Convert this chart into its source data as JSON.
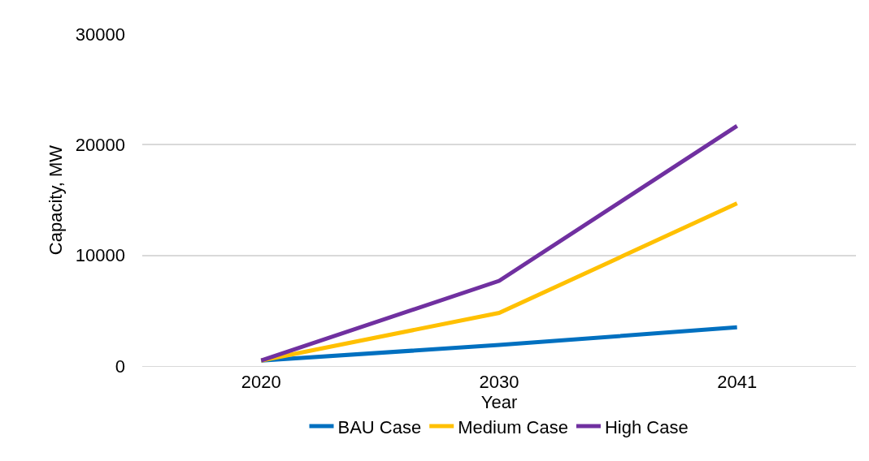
{
  "chart_data": {
    "type": "line",
    "xlabel": "Year",
    "ylabel": "Capacity, MW",
    "categories": [
      "2020",
      "2030",
      "2041"
    ],
    "series": [
      {
        "name": "BAU Case",
        "color": "#0070c0",
        "values": [
          500,
          1900,
          3500
        ]
      },
      {
        "name": "Medium Case",
        "color": "#ffc000",
        "values": [
          500,
          4800,
          14700
        ]
      },
      {
        "name": "High Case",
        "color": "#7030a0",
        "values": [
          500,
          7700,
          21700
        ]
      }
    ],
    "ylim": [
      0,
      30000
    ],
    "yticks": [
      0,
      10000,
      20000,
      30000
    ],
    "grid": "y",
    "legend": "bottom",
    "marker": "none",
    "line_style": "solid"
  }
}
